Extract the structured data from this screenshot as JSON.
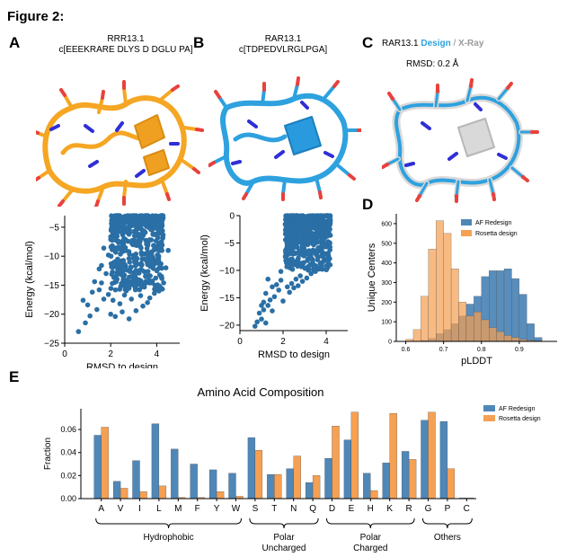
{
  "figure_title": "Figure 2:",
  "panel_labels": {
    "a": "A",
    "b": "B",
    "c": "C",
    "d": "D",
    "e": "E"
  },
  "panel_a": {
    "name": "RRR13.1",
    "sequence": "c[EEEKRARE DLYS D DGLU PA]"
  },
  "panel_b": {
    "name": "RAR13.1",
    "sequence": "c[TDPEDVLRGLPGA]"
  },
  "panel_c": {
    "name": "RAR13.1",
    "design_word": "Design",
    "separator": " / ",
    "xray_word": "X-Ray",
    "rmsd": "RMSD: 0.2 Å"
  },
  "colors": {
    "orange": "#f5a623",
    "blue": "#2ea1df",
    "scatter": "#2a6fa5",
    "af": "#4f87b8",
    "rosetta": "#f5a053",
    "oxygen": "#e8413c",
    "nitrogen": "#2f2fd6",
    "grey": "#d9d9d9"
  },
  "chart_data": [
    {
      "type": "scatter",
      "panel": "A",
      "xlabel": "RMSD to design",
      "ylabel": "Energy (kcal/mol)",
      "xlim": [
        0,
        5
      ],
      "ylim": [
        -25,
        -3
      ],
      "x_ticks": [
        0,
        2,
        4
      ],
      "x_tick_labels": [
        "0",
        "2",
        "4"
      ],
      "y_ticks": [
        -25,
        -20,
        -15,
        -10,
        -5
      ],
      "y_tick_labels": [
        "−25",
        "−20",
        "−15",
        "−10",
        "−5"
      ],
      "density_band": {
        "x_min": 2.0,
        "x_max": 4.3,
        "y_top": -3,
        "y_bottom": -16
      },
      "points": [
        [
          0.6,
          -23.0
        ],
        [
          0.9,
          -21.5
        ],
        [
          1.1,
          -20.3
        ],
        [
          0.8,
          -17.6
        ],
        [
          1.2,
          -16.2
        ],
        [
          1.0,
          -18.4
        ],
        [
          1.4,
          -19.2
        ],
        [
          1.7,
          -17.4
        ],
        [
          1.5,
          -15.8
        ],
        [
          1.9,
          -16.6
        ],
        [
          1.6,
          -14.6
        ],
        [
          1.3,
          -14.4
        ],
        [
          2.2,
          -20.4
        ],
        [
          2.5,
          -19.6
        ],
        [
          2.8,
          -20.8
        ],
        [
          3.1,
          -19.4
        ],
        [
          2.4,
          -18.2
        ],
        [
          3.4,
          -18.6
        ],
        [
          2.1,
          -17.6
        ],
        [
          2.9,
          -17.4
        ],
        [
          3.7,
          -17.2
        ],
        [
          3.3,
          -16.8
        ],
        [
          2.6,
          -16.7
        ],
        [
          3.9,
          -16.4
        ],
        [
          4.1,
          -16.0
        ],
        [
          1.8,
          -13.0
        ],
        [
          1.6,
          -11.6
        ],
        [
          1.9,
          -9.8
        ],
        [
          1.7,
          -8.6
        ],
        [
          1.5,
          -12.2
        ],
        [
          4.4,
          -12.0
        ],
        [
          4.5,
          -9.0
        ],
        [
          4.3,
          -14.6
        ],
        [
          2.0,
          -20.0
        ],
        [
          3.6,
          -18.0
        ]
      ]
    },
    {
      "type": "scatter",
      "panel": "B",
      "xlabel": "RMSD to design",
      "ylabel": "Energy (kcal/mol)",
      "xlim": [
        0,
        5
      ],
      "ylim": [
        -21,
        0
      ],
      "x_ticks": [
        0,
        2,
        4
      ],
      "x_tick_labels": [
        "0",
        "2",
        "4"
      ],
      "y_ticks": [
        -20,
        -15,
        -10,
        -5,
        0
      ],
      "y_tick_labels": [
        "−20",
        "−15",
        "−10",
        "−5",
        "0"
      ],
      "density_band": {
        "x_min": 2.1,
        "x_max": 4.2,
        "y_top": 0,
        "y_bottom": -10
      },
      "points": [
        [
          0.7,
          -20.2
        ],
        [
          0.8,
          -19.4
        ],
        [
          1.0,
          -18.9
        ],
        [
          1.2,
          -19.6
        ],
        [
          0.9,
          -17.8
        ],
        [
          1.1,
          -17.2
        ],
        [
          1.3,
          -16.4
        ],
        [
          1.5,
          -17.4
        ],
        [
          1.4,
          -15.4
        ],
        [
          1.6,
          -14.8
        ],
        [
          1.2,
          -14.2
        ],
        [
          1.8,
          -13.6
        ],
        [
          1.7,
          -12.6
        ],
        [
          1.9,
          -11.8
        ],
        [
          2.0,
          -15.6
        ],
        [
          1.5,
          -13.0
        ],
        [
          1.1,
          -15.8
        ],
        [
          2.2,
          -13.0
        ],
        [
          2.4,
          -12.4
        ],
        [
          2.6,
          -11.6
        ],
        [
          2.8,
          -11.0
        ],
        [
          2.3,
          -14.0
        ],
        [
          2.9,
          -12.0
        ],
        [
          3.1,
          -11.4
        ],
        [
          3.3,
          -10.6
        ],
        [
          3.5,
          -10.2
        ],
        [
          2.5,
          -13.2
        ],
        [
          1.9,
          -10.2
        ],
        [
          1.3,
          -11.6
        ],
        [
          2.7,
          -12.8
        ],
        [
          3.2,
          -9.8
        ],
        [
          1.0,
          -16.4
        ]
      ]
    },
    {
      "type": "histogram",
      "panel": "D",
      "xlabel": "pLDDT",
      "ylabel": "Unique Centers",
      "xlim": [
        0.575,
        1.0
      ],
      "ylim": [
        0,
        650
      ],
      "x_ticks": [
        0.6,
        0.7,
        0.8,
        0.9
      ],
      "x_tick_labels": [
        "0.6",
        "0.7",
        "0.8",
        "0.9"
      ],
      "y_ticks": [
        0,
        100,
        200,
        300,
        400,
        500,
        600
      ],
      "y_tick_labels": [
        "0",
        "100",
        "200",
        "300",
        "400",
        "500",
        "600"
      ],
      "bin_start": 0.6,
      "bin_width": 0.02,
      "series": [
        {
          "name": "AF Redesign",
          "values": [
            0,
            2,
            5,
            15,
            40,
            60,
            90,
            130,
            190,
            230,
            330,
            360,
            360,
            370,
            320,
            240,
            90,
            20
          ]
        },
        {
          "name": "Rosetta design",
          "values": [
            10,
            60,
            230,
            470,
            615,
            550,
            370,
            200,
            130,
            150,
            110,
            70,
            50,
            30,
            20,
            10,
            5,
            2
          ]
        }
      ]
    },
    {
      "type": "bar",
      "panel": "E",
      "title": "Amino Acid Composition",
      "ylabel": "Fraction",
      "ylim": [
        0,
        0.078
      ],
      "y_ticks": [
        0.0,
        0.02,
        0.04,
        0.06
      ],
      "y_tick_labels": [
        "0.00",
        "0.02",
        "0.04",
        "0.06"
      ],
      "categories": [
        "A",
        "V",
        "I",
        "L",
        "M",
        "F",
        "Y",
        "W",
        "S",
        "T",
        "N",
        "Q",
        "D",
        "E",
        "H",
        "K",
        "R",
        "G",
        "P",
        "C"
      ],
      "series": [
        {
          "name": "AF Redesign",
          "values": [
            0.055,
            0.015,
            0.033,
            0.065,
            0.043,
            0.03,
            0.025,
            0.022,
            0.053,
            0.021,
            0.026,
            0.014,
            0.035,
            0.051,
            0.022,
            0.031,
            0.041,
            0.068,
            0.067,
            0.0005
          ]
        },
        {
          "name": "Rosetta design",
          "values": [
            0.062,
            0.009,
            0.006,
            0.011,
            0.001,
            0.001,
            0.006,
            0.002,
            0.042,
            0.021,
            0.037,
            0.02,
            0.063,
            0.075,
            0.007,
            0.074,
            0.034,
            0.075,
            0.026,
            0.0005
          ]
        }
      ],
      "groups": [
        {
          "label": "Hydrophobic",
          "from": 0,
          "to": 7
        },
        {
          "label": "Polar Uncharged",
          "line1": "Polar",
          "line2": "Uncharged",
          "from": 8,
          "to": 11
        },
        {
          "label": "Polar Charged",
          "line1": "Polar",
          "line2": "Charged",
          "from": 12,
          "to": 16
        },
        {
          "label": "Others",
          "from": 17,
          "to": 19
        }
      ]
    }
  ]
}
